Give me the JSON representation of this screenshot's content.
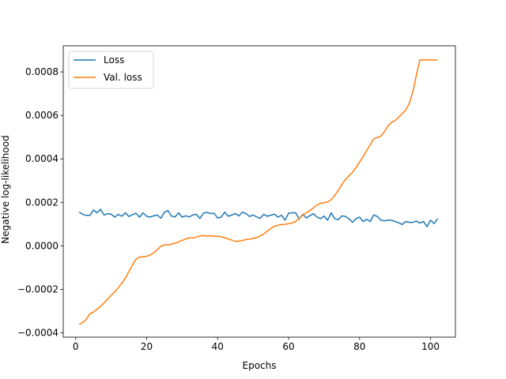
{
  "chart_data": {
    "type": "line",
    "title": "",
    "xlabel": "Epochs",
    "ylabel": "Negative log-likelihood",
    "xlim": [
      -3.5,
      107
    ],
    "ylim": [
      -0.00042,
      0.00092
    ],
    "xticks": [
      0,
      20,
      40,
      60,
      80,
      100
    ],
    "yticks": [
      -0.0004,
      -0.0002,
      0.0,
      0.0002,
      0.0004,
      0.0006,
      0.0008
    ],
    "ytick_labels": [
      "−0.0004",
      "−0.0002",
      "0.0000",
      "0.0002",
      "0.0004",
      "0.0006",
      "0.0008"
    ],
    "grid": false,
    "legend_position": "top-left",
    "series": [
      {
        "name": "Loss",
        "color": "#1f77b4",
        "x": [
          1,
          2,
          3,
          4,
          5,
          6,
          7,
          8,
          9,
          10,
          11,
          12,
          13,
          14,
          15,
          16,
          17,
          18,
          19,
          20,
          21,
          22,
          23,
          24,
          25,
          26,
          27,
          28,
          29,
          30,
          31,
          32,
          33,
          34,
          35,
          36,
          37,
          38,
          39,
          40,
          41,
          42,
          43,
          44,
          45,
          46,
          47,
          48,
          49,
          50,
          51,
          52,
          53,
          54,
          55,
          56,
          57,
          58,
          59,
          60,
          61,
          62,
          63,
          64,
          65,
          66,
          67,
          68,
          69,
          70,
          71,
          72,
          73,
          74,
          75,
          76,
          77,
          78,
          79,
          80,
          81,
          82,
          83,
          84,
          85,
          86,
          87,
          88,
          89,
          90,
          91,
          92,
          93,
          94,
          95,
          96,
          97,
          98,
          99,
          100,
          101,
          102
        ],
        "y": [
          0.000155,
          0.000145,
          0.00014,
          0.00014,
          0.000165,
          0.000152,
          0.000168,
          0.000142,
          0.000148,
          0.000146,
          0.000132,
          0.000145,
          0.000136,
          0.000152,
          0.000135,
          0.000143,
          0.00015,
          0.000132,
          0.000152,
          0.000136,
          0.000132,
          0.000138,
          0.000142,
          0.000127,
          0.000155,
          0.000162,
          0.000137,
          0.000133,
          0.000152,
          0.000132,
          0.000138,
          0.000133,
          0.000142,
          0.000145,
          0.000126,
          0.00015,
          0.000154,
          0.000148,
          0.00015,
          0.000128,
          0.000132,
          0.000155,
          0.000136,
          0.000142,
          0.000148,
          0.000138,
          0.000155,
          0.000148,
          0.000135,
          0.000142,
          0.000133,
          0.000126,
          0.000145,
          0.000136,
          0.000141,
          0.000146,
          0.000132,
          0.000141,
          0.000118,
          0.00015,
          0.000152,
          0.000152,
          0.000124,
          0.000145,
          0.000128,
          0.000139,
          0.000148,
          0.000132,
          0.000125,
          0.000137,
          0.000118,
          0.000152,
          0.000124,
          0.00012,
          0.000138,
          0.000135,
          0.000125,
          0.000108,
          0.000125,
          0.000132,
          0.000112,
          0.000122,
          0.000112,
          0.000142,
          0.000135,
          0.000118,
          0.000115,
          0.000118,
          0.000118,
          0.000112,
          0.000106,
          9.8e-05,
          0.000112,
          0.000108,
          0.000108,
          0.000114,
          0.000105,
          0.000112,
          8.8e-05,
          0.000118,
          0.000102,
          0.000126
        ]
      },
      {
        "name": "Val. loss",
        "color": "#ff7f0e",
        "x": [
          1,
          2,
          3,
          4,
          5,
          6,
          7,
          8,
          9,
          10,
          11,
          12,
          13,
          14,
          15,
          16,
          17,
          18,
          19,
          20,
          21,
          22,
          23,
          24,
          25,
          26,
          27,
          28,
          29,
          30,
          31,
          32,
          33,
          34,
          35,
          36,
          37,
          38,
          39,
          40,
          41,
          42,
          43,
          44,
          45,
          46,
          47,
          48,
          49,
          50,
          51,
          52,
          53,
          54,
          55,
          56,
          57,
          58,
          59,
          60,
          61,
          62,
          63,
          64,
          65,
          66,
          67,
          68,
          69,
          70,
          71,
          72,
          73,
          74,
          75,
          76,
          77,
          78,
          79,
          80,
          81,
          82,
          83,
          84,
          85,
          86,
          87,
          88,
          89,
          90,
          91,
          92,
          93,
          94,
          95,
          96,
          97,
          98,
          99,
          100,
          101,
          102
        ],
        "y": [
          -0.000362,
          -0.000352,
          -0.000338,
          -0.000312,
          -0.000305,
          -0.000292,
          -0.000278,
          -0.000262,
          -0.000245,
          -0.000228,
          -0.000212,
          -0.000192,
          -0.000172,
          -0.000148,
          -0.000118,
          -8.8e-05,
          -6.2e-05,
          -5.2e-05,
          -5e-05,
          -4.8e-05,
          -4.2e-05,
          -3.2e-05,
          -1.8e-05,
          -2e-06,
          4e-06,
          5e-06,
          8e-06,
          1.2e-05,
          1.8e-05,
          2.5e-05,
          3.2e-05,
          3.6e-05,
          3.6e-05,
          4e-05,
          4.6e-05,
          4.7e-05,
          4.5e-05,
          4.6e-05,
          4.4e-05,
          4.5e-05,
          4.2e-05,
          3.7e-05,
          3.2e-05,
          2.6e-05,
          2.1e-05,
          2.1e-05,
          2.5e-05,
          2.9e-05,
          3.1e-05,
          3.4e-05,
          3.8e-05,
          4.5e-05,
          5.5e-05,
          6.8e-05,
          8e-05,
          9e-05,
          9.5e-05,
          9.8e-05,
          9.9e-05,
          0.000102,
          0.000105,
          0.000112,
          0.000125,
          0.000142,
          0.000152,
          0.000162,
          0.000175,
          0.000188,
          0.000196,
          0.000198,
          0.000202,
          0.000212,
          0.000232,
          0.000255,
          0.000282,
          0.000305,
          0.000322,
          0.000338,
          0.00036,
          0.000385,
          0.00041,
          0.000438,
          0.000465,
          0.000492,
          0.000498,
          0.000505,
          0.000525,
          0.000552,
          0.000568,
          0.000576,
          0.000592,
          0.000608,
          0.000625,
          0.000655,
          0.000708,
          0.000785,
          0.000855,
          0.000855,
          0.000855,
          0.000855,
          0.000855,
          0.000855
        ]
      }
    ]
  }
}
